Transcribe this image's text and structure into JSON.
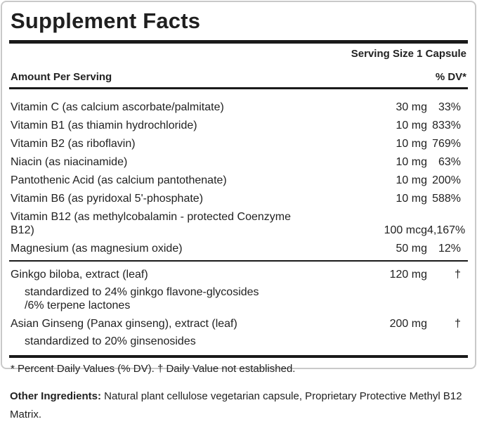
{
  "label": {
    "title": "Supplement Facts",
    "serving_size": "Serving Size 1 Capsule",
    "header": {
      "amount_col": "Amount Per Serving",
      "dv_col": "% DV*"
    },
    "rows": [
      {
        "name_lines": [
          "Vitamin C (as calcium ascorbate/palmitate)"
        ],
        "amount": "30 mg",
        "dv": "33%"
      },
      {
        "name_lines": [
          "Vitamin B1 (as thiamin hydrochloride)"
        ],
        "amount": "10 mg",
        "dv": "833%"
      },
      {
        "name_lines": [
          "Vitamin B2 (as riboflavin)"
        ],
        "amount": "10 mg",
        "dv": "769%"
      },
      {
        "name_lines": [
          "Niacin (as niacinamide)"
        ],
        "amount": "10 mg",
        "dv": "63%"
      },
      {
        "name_lines": [
          "Pantothenic Acid (as calcium pantothenate)"
        ],
        "amount": "10 mg",
        "dv": "200%"
      },
      {
        "name_lines": [
          "Vitamin B6 (as pyridoxal 5'-phosphate)"
        ],
        "amount": "10 mg",
        "dv": "588%"
      },
      {
        "name_lines": [
          "Vitamin B12 (as methylcobalamin - protected Coenzyme",
          "B12)"
        ],
        "amount": "100 mcg",
        "dv": "4,167%"
      },
      {
        "name_lines": [
          "Magnesium (as magnesium oxide)"
        ],
        "amount": "50 mg",
        "dv": "12%"
      },
      {
        "divider_before": true,
        "name_lines": [
          "Ginkgo biloba, extract (leaf)"
        ],
        "amount": "120 mg",
        "dv": "†",
        "sub_lines": [
          "standardized to 24% ginkgo flavone-glycosides",
          "/6% terpene lactones"
        ]
      },
      {
        "name_lines": [
          "Asian Ginseng (Panax ginseng), extract (leaf)"
        ],
        "amount": "200 mg",
        "dv": "†",
        "sub_lines": [
          "standardized to 20% ginsenosides"
        ]
      }
    ],
    "footnote": "* Percent Daily Values (% DV). † Daily Value not established."
  },
  "other_ingredients": {
    "label": "Other Ingredients:",
    "text": " Natural plant cellulose vegetarian capsule, Proprietary Protective Methyl B12 Matrix."
  },
  "colors": {
    "text": "#222222",
    "rule": "#1a1a1a",
    "box_border": "#c9c9c9",
    "background": "#ffffff"
  }
}
